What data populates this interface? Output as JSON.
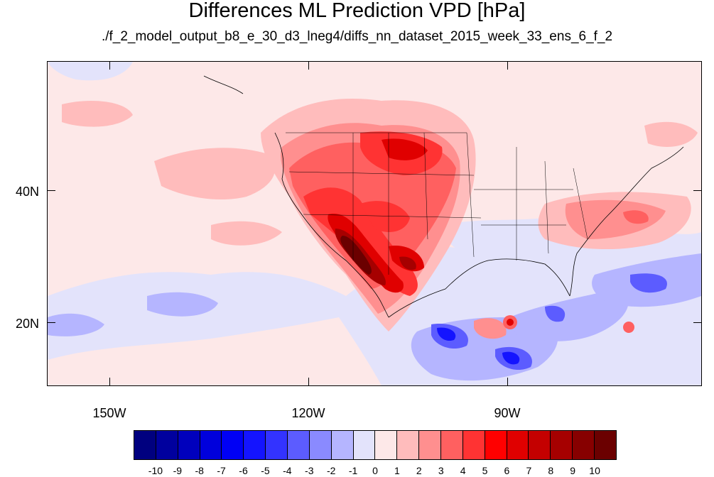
{
  "title": "Differences ML Prediction VPD [hPa]",
  "subtitle": "./f_2_model_output_b8_e_30_d3_lneg4/diffs_nn_dataset_2015_week_33_ens_6_f_2",
  "lat_labels": [
    "40N",
    "20N"
  ],
  "lon_labels": [
    "150W",
    "120W",
    "90W"
  ],
  "colorbar": {
    "labels": [
      "-10",
      "-9",
      "-8",
      "-7",
      "-6",
      "-5",
      "-4",
      "-3",
      "-2",
      "-1",
      "0",
      "1",
      "2",
      "3",
      "4",
      "5",
      "6",
      "7",
      "8",
      "9",
      "10"
    ],
    "colors": [
      "#00007f",
      "#00009e",
      "#0000bd",
      "#0000dc",
      "#0000f5",
      "#1414ff",
      "#3333ff",
      "#5c5cff",
      "#8a8aff",
      "#b5b5ff",
      "#e3e3fb",
      "#fde8e8",
      "#ffbcbc",
      "#ff8f8f",
      "#ff6060",
      "#ff3333",
      "#ff0000",
      "#e00000",
      "#c40000",
      "#a60000",
      "#870000",
      "#6b0000"
    ]
  }
}
